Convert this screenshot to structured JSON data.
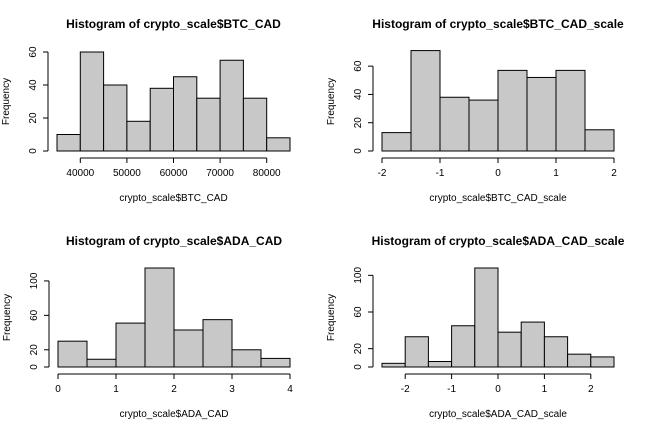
{
  "chart_data": [
    {
      "type": "bar",
      "title": "Histogram of crypto_scale$BTC_CAD",
      "xlabel": "crypto_scale$BTC_CAD",
      "ylabel": "Frequency",
      "bins": [
        [
          35000,
          40000
        ],
        [
          40000,
          45000
        ],
        [
          45000,
          50000
        ],
        [
          50000,
          55000
        ],
        [
          55000,
          60000
        ],
        [
          60000,
          65000
        ],
        [
          65000,
          70000
        ],
        [
          70000,
          75000
        ],
        [
          75000,
          80000
        ],
        [
          80000,
          85000
        ]
      ],
      "values": [
        10,
        60,
        40,
        18,
        38,
        45,
        32,
        55,
        32,
        8
      ],
      "xlim": [
        35000,
        85000
      ],
      "ylim": [
        0,
        60
      ],
      "xticks": [
        40000,
        50000,
        60000,
        70000,
        80000
      ],
      "xtick_labels": [
        "40000",
        "50000",
        "60000",
        "70000",
        "80000"
      ],
      "yticks": [
        0,
        20,
        40,
        60
      ],
      "ytick_labels": [
        "0",
        "20",
        "40",
        "60"
      ]
    },
    {
      "type": "bar",
      "title": "Histogram of crypto_scale$BTC_CAD_scale",
      "xlabel": "crypto_scale$BTC_CAD_scale",
      "ylabel": "Frequency",
      "bins": [
        [
          -2,
          -1.5
        ],
        [
          -1.5,
          -1
        ],
        [
          -1,
          -0.5
        ],
        [
          -0.5,
          0
        ],
        [
          0,
          0.5
        ],
        [
          0.5,
          1
        ],
        [
          1,
          1.5
        ],
        [
          1.5,
          2
        ]
      ],
      "values": [
        13,
        71,
        38,
        36,
        57,
        52,
        57,
        15
      ],
      "xlim": [
        -2,
        2
      ],
      "ylim": [
        0,
        70
      ],
      "xticks": [
        -2,
        -1,
        0,
        1,
        2
      ],
      "xtick_labels": [
        "-2",
        "-1",
        "0",
        "1",
        "2"
      ],
      "yticks": [
        0,
        20,
        40,
        60
      ],
      "ytick_labels": [
        "0",
        "20",
        "40",
        "60"
      ]
    },
    {
      "type": "bar",
      "title": "Histogram of crypto_scale$ADA_CAD",
      "xlabel": "crypto_scale$ADA_CAD",
      "ylabel": "Frequency",
      "bins": [
        [
          0,
          0.5
        ],
        [
          0.5,
          1
        ],
        [
          1,
          1.5
        ],
        [
          1.5,
          2
        ],
        [
          2,
          2.5
        ],
        [
          2.5,
          3
        ],
        [
          3,
          3.5
        ],
        [
          3.5,
          4
        ]
      ],
      "values": [
        30,
        9,
        51,
        115,
        43,
        55,
        20,
        10
      ],
      "xlim": [
        0,
        4
      ],
      "ylim": [
        0,
        115
      ],
      "xticks": [
        0,
        1,
        2,
        3,
        4
      ],
      "xtick_labels": [
        "0",
        "1",
        "2",
        "3",
        "4"
      ],
      "yticks": [
        0,
        20,
        60,
        100
      ],
      "ytick_labels": [
        "0",
        "20",
        "60",
        "100"
      ]
    },
    {
      "type": "bar",
      "title": "Histogram of crypto_scale$ADA_CAD_scale",
      "xlabel": "crypto_scale$ADA_CAD_scale",
      "ylabel": "Frequency",
      "bins": [
        [
          -2.5,
          -2
        ],
        [
          -2,
          -1.5
        ],
        [
          -1.5,
          -1
        ],
        [
          -1,
          -0.5
        ],
        [
          -0.5,
          0
        ],
        [
          0,
          0.5
        ],
        [
          0.5,
          1
        ],
        [
          1,
          1.5
        ],
        [
          1.5,
          2
        ],
        [
          2,
          2.5
        ]
      ],
      "values": [
        4,
        33,
        6,
        45,
        108,
        38,
        49,
        33,
        14,
        11
      ],
      "xlim": [
        -2.5,
        2.5
      ],
      "ylim": [
        0,
        108
      ],
      "xticks": [
        -2,
        -1,
        0,
        1,
        2
      ],
      "xtick_labels": [
        "-2",
        "-1",
        "0",
        "1",
        "2"
      ],
      "yticks": [
        0,
        20,
        60,
        100
      ],
      "ytick_labels": [
        "0",
        "20",
        "60",
        "100"
      ]
    }
  ],
  "colors": {
    "bar_fill": "#c8c8c8",
    "bar_stroke": "#000000",
    "axis": "#000000"
  }
}
